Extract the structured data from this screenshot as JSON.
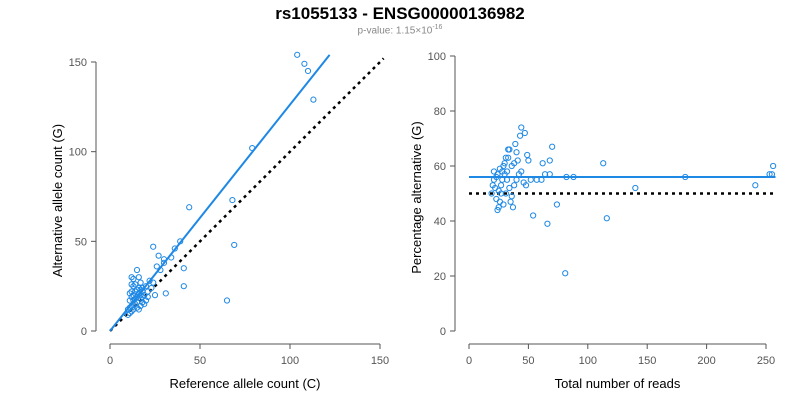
{
  "header": {
    "title": "rs1055133 - ENSG00000136982",
    "pvalue_prefix": "p-value: 1.15×10",
    "pvalue_exp": "-16"
  },
  "colors": {
    "points": "#1e88e5",
    "fit": "#1e88e5",
    "reference": "#000000",
    "axis": "#555555"
  },
  "chart_data": [
    {
      "type": "scatter",
      "xlabel": "Reference allele count (C)",
      "ylabel": "Alternative allele count (G)",
      "xlim": [
        0,
        150
      ],
      "ylim": [
        0,
        150
      ],
      "xticks": [
        0,
        50,
        100,
        150
      ],
      "yticks": [
        0,
        50,
        100,
        150
      ],
      "grid": false,
      "fit_line": {
        "x": [
          0,
          122
        ],
        "y": [
          0,
          154
        ]
      },
      "reference_line": {
        "x": [
          0,
          152
        ],
        "y": [
          0,
          152
        ]
      },
      "points": [
        [
          104,
          154
        ],
        [
          108,
          149
        ],
        [
          110,
          145
        ],
        [
          113,
          129
        ],
        [
          79,
          102
        ],
        [
          44,
          69
        ],
        [
          68,
          73
        ],
        [
          69,
          48
        ],
        [
          65,
          17
        ],
        [
          41,
          25
        ],
        [
          41,
          35
        ],
        [
          39,
          50
        ],
        [
          36,
          46
        ],
        [
          34,
          41
        ],
        [
          30,
          40
        ],
        [
          30,
          38
        ],
        [
          24,
          47
        ],
        [
          27,
          42
        ],
        [
          26,
          36
        ],
        [
          28,
          34
        ],
        [
          22,
          28
        ],
        [
          20,
          25
        ],
        [
          24,
          27
        ],
        [
          23,
          24
        ],
        [
          21,
          22
        ],
        [
          25,
          20
        ],
        [
          31,
          21
        ],
        [
          18,
          22
        ],
        [
          19,
          20
        ],
        [
          17,
          18
        ],
        [
          16,
          24
        ],
        [
          15,
          23
        ],
        [
          14,
          26
        ],
        [
          13,
          29
        ],
        [
          12,
          30
        ],
        [
          15,
          34
        ],
        [
          16,
          30
        ],
        [
          17,
          27
        ],
        [
          13,
          25
        ],
        [
          12,
          22
        ],
        [
          12,
          19
        ],
        [
          13,
          17
        ],
        [
          14,
          15
        ],
        [
          15,
          13
        ],
        [
          16,
          12
        ],
        [
          17,
          14
        ],
        [
          18,
          16
        ],
        [
          12,
          14
        ],
        [
          11,
          13
        ],
        [
          10,
          12
        ],
        [
          11,
          10
        ],
        [
          10,
          9
        ],
        [
          12,
          11
        ],
        [
          13,
          12
        ],
        [
          14,
          18
        ],
        [
          15,
          19
        ],
        [
          16,
          21
        ],
        [
          17,
          20
        ],
        [
          18,
          19
        ],
        [
          13,
          20
        ],
        [
          11,
          17
        ],
        [
          14,
          22
        ],
        [
          15,
          16
        ],
        [
          19,
          15
        ],
        [
          20,
          17
        ],
        [
          21,
          19
        ],
        [
          17,
          23
        ],
        [
          11,
          21
        ],
        [
          12,
          26
        ],
        [
          18,
          24
        ]
      ]
    },
    {
      "type": "scatter",
      "xlabel": "Total number of reads",
      "ylabel": "Percentage alternative (G)",
      "xlim": [
        0,
        250
      ],
      "ylim": [
        0,
        100
      ],
      "xticks": [
        0,
        50,
        100,
        150,
        200,
        250
      ],
      "yticks": [
        0,
        20,
        40,
        60,
        80,
        100
      ],
      "grid": false,
      "fit_line": {
        "x": [
          0,
          258
        ],
        "y": [
          56,
          56
        ]
      },
      "reference_line": {
        "x": [
          0,
          258
        ],
        "y": [
          50,
          50
        ]
      },
      "points": [
        [
          256,
          60
        ],
        [
          253,
          57
        ],
        [
          255,
          57
        ],
        [
          241,
          53
        ],
        [
          182,
          56
        ],
        [
          140,
          52
        ],
        [
          116,
          41
        ],
        [
          113,
          61
        ],
        [
          88,
          56
        ],
        [
          82,
          56
        ],
        [
          81,
          21
        ],
        [
          74,
          46
        ],
        [
          70,
          67
        ],
        [
          68,
          57
        ],
        [
          66,
          39
        ],
        [
          64,
          57
        ],
        [
          68,
          62
        ],
        [
          62,
          61
        ],
        [
          61,
          55
        ],
        [
          57,
          55
        ],
        [
          54,
          42
        ],
        [
          52,
          55
        ],
        [
          50,
          62
        ],
        [
          49,
          64
        ],
        [
          47,
          72
        ],
        [
          44,
          74
        ],
        [
          43,
          71
        ],
        [
          41,
          62
        ],
        [
          40,
          65
        ],
        [
          39,
          68
        ],
        [
          38,
          61
        ],
        [
          36,
          60
        ],
        [
          34,
          66
        ],
        [
          33,
          66
        ],
        [
          32,
          58
        ],
        [
          31,
          63
        ],
        [
          30,
          61
        ],
        [
          29,
          60
        ],
        [
          28,
          55
        ],
        [
          27,
          50
        ],
        [
          26,
          47
        ],
        [
          25,
          45
        ],
        [
          24,
          44
        ],
        [
          23,
          48
        ],
        [
          22,
          52
        ],
        [
          21,
          58
        ],
        [
          20,
          53
        ],
        [
          19,
          50
        ],
        [
          21,
          55
        ],
        [
          23,
          56
        ],
        [
          25,
          51
        ],
        [
          27,
          53
        ],
        [
          28,
          58
        ],
        [
          30,
          57
        ],
        [
          32,
          55
        ],
        [
          34,
          52
        ],
        [
          36,
          49
        ],
        [
          38,
          53
        ],
        [
          40,
          55
        ],
        [
          42,
          57
        ],
        [
          44,
          58
        ],
        [
          46,
          54
        ],
        [
          48,
          53
        ],
        [
          24,
          57
        ],
        [
          26,
          59
        ],
        [
          29,
          46
        ],
        [
          31,
          50
        ],
        [
          35,
          47
        ],
        [
          37,
          45
        ],
        [
          33,
          63
        ]
      ]
    }
  ]
}
